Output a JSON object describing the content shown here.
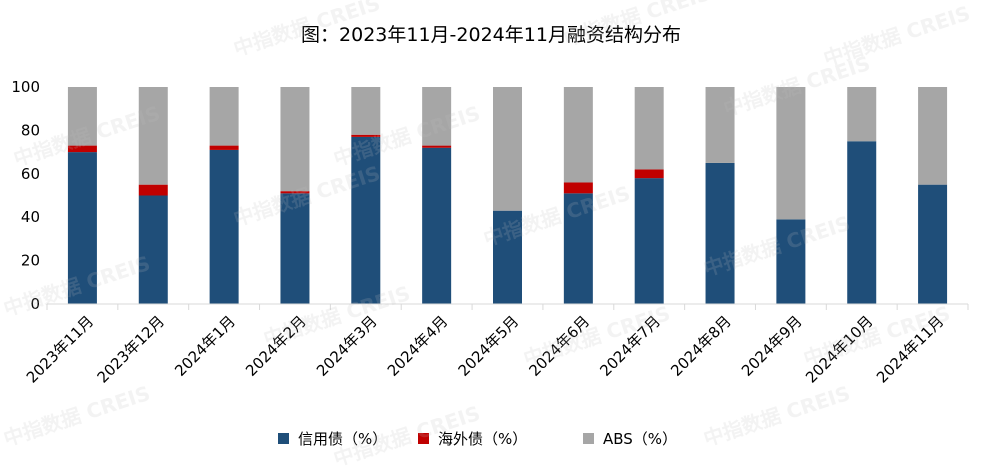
{
  "chart_data": {
    "type": "bar",
    "stacked": true,
    "title": "图：2023年11月-2024年11月融资结构分布",
    "categories": [
      "2023年11月",
      "2023年12月",
      "2024年1月",
      "2024年2月",
      "2024年3月",
      "2024年4月",
      "2024年5月",
      "2024年6月",
      "2024年7月",
      "2024年8月",
      "2024年9月",
      "2024年10月",
      "2024年11月"
    ],
    "series": [
      {
        "name": "信用债（%）",
        "color": "#1F4E79",
        "values": [
          70,
          50,
          71,
          51,
          77,
          72,
          43,
          51,
          58,
          65,
          39,
          75,
          55
        ]
      },
      {
        "name": "海外债（%）",
        "color": "#C00000",
        "values": [
          3,
          5,
          2,
          1,
          1,
          1,
          0,
          5,
          4,
          0,
          0,
          0,
          0
        ]
      },
      {
        "name": "ABS（%）",
        "color": "#A6A6A6",
        "values": [
          27,
          45,
          27,
          48,
          22,
          27,
          57,
          44,
          38,
          35,
          61,
          25,
          45
        ]
      }
    ],
    "ylim": [
      0,
      100
    ],
    "yticks": [
      0,
      20,
      40,
      60,
      80,
      100
    ],
    "grid": false,
    "legend_position": "bottom"
  },
  "watermark_text": "中指数据 CREIS"
}
